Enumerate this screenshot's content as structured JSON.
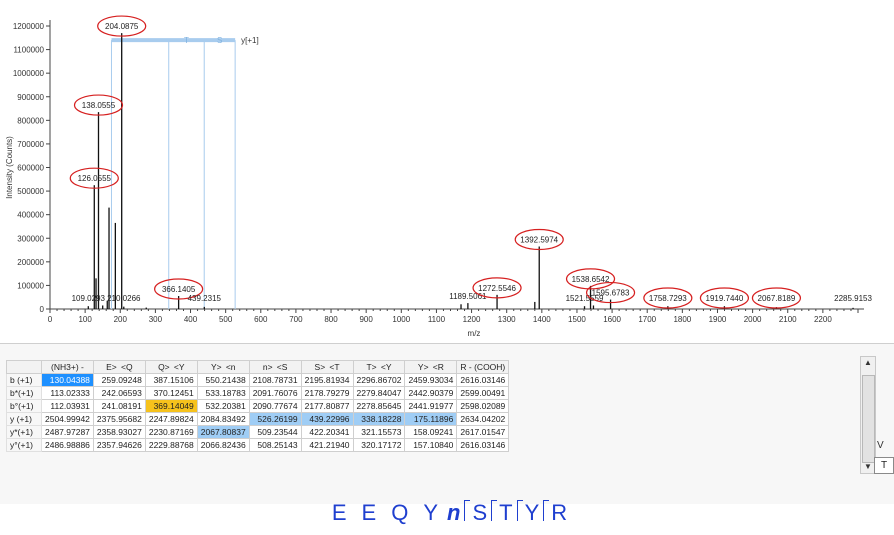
{
  "chart_data": {
    "type": "bar",
    "ylabel": "Intensity (Counts)",
    "xlabel": "m/z",
    "xlim": [
      0,
      2300
    ],
    "ylim": [
      0,
      1200000
    ],
    "x_ticks": [
      0,
      100,
      200,
      300,
      400,
      500,
      600,
      700,
      800,
      900,
      1000,
      1100,
      1200,
      1300,
      1400,
      1500,
      1600,
      1700,
      1800,
      1900,
      2000,
      2100,
      2200
    ],
    "x_tick_labels": [
      "0",
      "100",
      "200",
      "300",
      "400",
      "500",
      "600",
      "700",
      "800",
      "900",
      "1000",
      "1100",
      "1200",
      "1300",
      "1400",
      "1500",
      "1600",
      "1700",
      "1800",
      "1900",
      "2000",
      "2100",
      "2200"
    ],
    "y_ticks": [
      0,
      100000,
      200000,
      300000,
      400000,
      500000,
      600000,
      700000,
      800000,
      900000,
      1000000,
      1100000,
      1200000
    ],
    "y_tick_labels": [
      "0",
      "100000",
      "200000",
      "300000",
      "400000",
      "500000",
      "600000",
      "700000",
      "800000",
      "900000",
      "1000000",
      "1100000",
      "1200000"
    ],
    "peaks": [
      {
        "x": 109.0293,
        "y": 12000
      },
      {
        "x": 126.0555,
        "y": 525000
      },
      {
        "x": 131,
        "y": 130000
      },
      {
        "x": 138.0555,
        "y": 835000
      },
      {
        "x": 150,
        "y": 15000
      },
      {
        "x": 163,
        "y": 35000
      },
      {
        "x": 168,
        "y": 430000
      },
      {
        "x": 186,
        "y": 365000
      },
      {
        "x": 204.0875,
        "y": 1170000
      },
      {
        "x": 210.0266,
        "y": 10000
      },
      {
        "x": 274,
        "y": 6000
      },
      {
        "x": 366.1405,
        "y": 55000
      },
      {
        "x": 439.2315,
        "y": 9000
      },
      {
        "x": 1170,
        "y": 20000
      },
      {
        "x": 1189.5061,
        "y": 25000
      },
      {
        "x": 1272.5546,
        "y": 60000
      },
      {
        "x": 1380,
        "y": 30000
      },
      {
        "x": 1392.5974,
        "y": 265000
      },
      {
        "x": 1521.5559,
        "y": 12000
      },
      {
        "x": 1538.6542,
        "y": 98000
      },
      {
        "x": 1547,
        "y": 15000
      },
      {
        "x": 1595.6783,
        "y": 40000
      },
      {
        "x": 1758.7293,
        "y": 12000
      },
      {
        "x": 1919.744,
        "y": 12000
      },
      {
        "x": 2067.8189,
        "y": 8000
      },
      {
        "x": 2285.9153,
        "y": 5000
      }
    ],
    "peak_labels": [
      {
        "text": "204.0875",
        "x": 204.0875,
        "y": 1170000,
        "circled": true
      },
      {
        "text": "138.0555",
        "x": 138.0555,
        "y": 835000,
        "circled": true
      },
      {
        "text": "126.0555",
        "x": 126.0555,
        "y": 525000,
        "circled": true
      },
      {
        "text": "366.1405",
        "x": 366.1405,
        "y": 55000,
        "circled": true
      },
      {
        "text": "109.0293",
        "x": 109.0293,
        "y": 12000,
        "circled": false
      },
      {
        "text": "210.0266",
        "x": 210.0266,
        "y": 10000,
        "circled": false
      },
      {
        "text": "439.2315",
        "x": 439.2315,
        "y": 9000,
        "circled": false
      },
      {
        "text": "1189.5061",
        "x": 1189.5061,
        "y": 25000,
        "circled": false
      },
      {
        "text": "1272.5546",
        "x": 1272.5546,
        "y": 60000,
        "circled": true
      },
      {
        "text": "1392.5974",
        "x": 1392.5974,
        "y": 265000,
        "circled": true
      },
      {
        "text": "1538.6542",
        "x": 1538.6542,
        "y": 98000,
        "circled": true
      },
      {
        "text": "1521.5559",
        "x": 1521.5559,
        "y": 12000,
        "circled": false
      },
      {
        "text": "1595.6783",
        "x": 1595.6783,
        "y": 40000,
        "circled": true
      },
      {
        "text": "1758.7293",
        "x": 1758.7293,
        "y": 12000,
        "circled": true
      },
      {
        "text": "1919.7440",
        "x": 1919.744,
        "y": 12000,
        "circled": true
      },
      {
        "text": "2067.8189",
        "x": 2067.8189,
        "y": 8000,
        "circled": true
      },
      {
        "text": "2285.9153",
        "x": 2285.9153,
        "y": 5000,
        "circled": false
      }
    ],
    "ion_ladder": {
      "label": "y[+1]",
      "y_level": 1140000,
      "x_from": 175,
      "x_to": 527,
      "boundaries": [
        175,
        204,
        338,
        439,
        527
      ],
      "residue_letters": [
        "T",
        "S"
      ]
    }
  },
  "fragment_table": {
    "columns": [
      "(NH3+) -",
      "E>",
      "<Q",
      "Q>",
      "<Y",
      "Y>",
      "<n",
      "n>",
      "<S",
      "S>",
      "<T",
      "T>",
      "<Y",
      "Y>",
      "<R",
      "R - (COOH)"
    ],
    "rows": [
      {
        "label": "b (+1)",
        "cells": [
          "130.04388",
          "259.09248",
          "387.15106",
          "550.21438",
          "2108.78731",
          "2195.81934",
          "2296.86702",
          "2459.93034",
          "2616.03146"
        ]
      },
      {
        "label": "b*(+1)",
        "cells": [
          "113.02333",
          "242.06593",
          "370.12451",
          "533.18783",
          "2091.76076",
          "2178.79279",
          "2279.84047",
          "2442.90379",
          "2599.00491"
        ]
      },
      {
        "label": "b°(+1)",
        "cells": [
          "112.03931",
          "241.08191",
          "369.14049",
          "532.20381",
          "2090.77674",
          "2177.80877",
          "2278.85645",
          "2441.91977",
          "2598.02089"
        ]
      },
      {
        "label": "y (+1)",
        "cells": [
          "2504.99942",
          "2375.95682",
          "2247.89824",
          "2084.83492",
          "526.26199",
          "439.22996",
          "338.18228",
          "175.11896",
          "2634.04202"
        ]
      },
      {
        "label": "y*(+1)",
        "cells": [
          "2487.97287",
          "2358.93027",
          "2230.87169",
          "2067.80837",
          "509.23544",
          "422.20341",
          "321.15573",
          "158.09241",
          "2617.01547"
        ]
      },
      {
        "label": "y°(+1)",
        "cells": [
          "2486.98886",
          "2357.94626",
          "2229.88768",
          "2066.82436",
          "508.25143",
          "421.21940",
          "320.17172",
          "157.10840",
          "2616.03146"
        ]
      }
    ],
    "highlights": {
      "blue": [
        "0-0"
      ],
      "lightblue": [
        "3-4",
        "3-5",
        "3-6",
        "3-7",
        "4-3"
      ],
      "orange": [
        "2-2"
      ]
    },
    "side_label": "V",
    "side_field": "T"
  },
  "sequence": {
    "residues": [
      "E",
      "E",
      "Q",
      "Y",
      "n",
      "S",
      "T",
      "Y",
      "R"
    ],
    "glyco_residue": "n",
    "breaks": "after n, S, T, Y"
  }
}
